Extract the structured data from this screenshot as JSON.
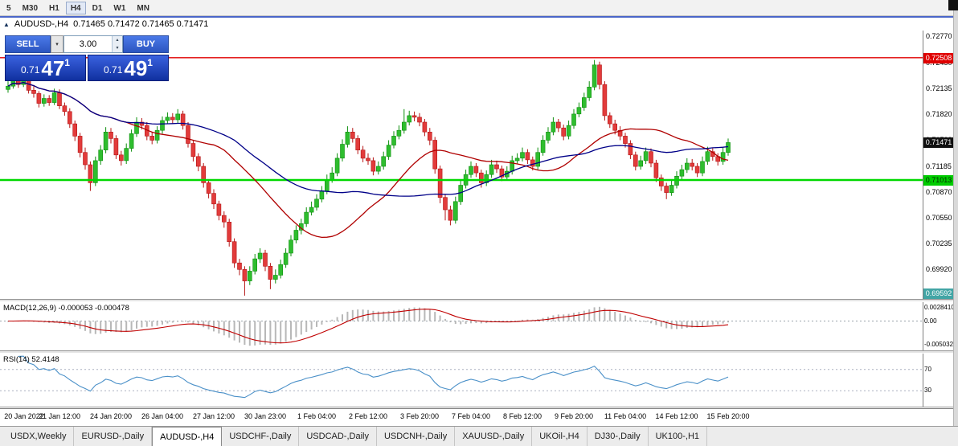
{
  "window": {
    "toolbar_timeframes": [
      "5",
      "M30",
      "H1",
      "H4",
      "D1",
      "W1",
      "MN"
    ],
    "active_timeframe": "H4"
  },
  "chart_header": {
    "title": "AUDUSD-,H4",
    "ohlc": "0.71465 0.71472 0.71465 0.71471"
  },
  "trade_panel": {
    "sell_label": "SELL",
    "buy_label": "BUY",
    "lot_value": "3.00",
    "sell_price_prefix": "0.71",
    "sell_price_big": "47",
    "sell_price_sup": "1",
    "buy_price_prefix": "0.71",
    "buy_price_big": "49",
    "buy_price_sup": "1"
  },
  "price_axis": {
    "scale_top": 0.7284,
    "scale_bottom": 0.6956,
    "labels": [
      "0.72770",
      "0.72450",
      "0.72135",
      "0.71820",
      "0.71500",
      "0.71185",
      "0.70870",
      "0.70550",
      "0.70235",
      "0.69920"
    ]
  },
  "levels": [
    {
      "name": "resistance",
      "price": 0.72508,
      "label": "0.72508",
      "line_color": "#e00000",
      "line_width": 1.4,
      "badge_bg": "#e00000",
      "badge_fg": "#ffffff"
    },
    {
      "name": "current-price",
      "price": 0.71471,
      "label": "0.71471",
      "line_color": null,
      "badge_bg": "#101010",
      "badge_fg": "#ffffff"
    },
    {
      "name": "support",
      "price": 0.71013,
      "label": "0.71013",
      "line_color": "#00d800",
      "line_width": 2.6,
      "badge_bg": "#00cc00",
      "badge_fg": "#002b00"
    },
    {
      "name": "range-low",
      "price": 0.69592,
      "label": "0.69592",
      "line_color": null,
      "badge_bg": "#42a5a5",
      "badge_fg": "#ffffff"
    }
  ],
  "macd_panel": {
    "label": "MACD(12,26,9) -0.000053 -0.000478",
    "axis_top_label": "0.0028410",
    "axis_zero_label": "0.00",
    "axis_bottom_label": "-0.0050320",
    "fast": 12,
    "slow": 26,
    "signal": 9
  },
  "rsi_panel": {
    "label": "RSI(14) 52.4148",
    "period": 14,
    "upper_level": "70",
    "lower_level": "30"
  },
  "bottom_tabs": {
    "active_index": 2,
    "items": [
      "USDX,Weekly",
      "EURUSD-,Daily",
      "AUDUSD-,H4",
      "USDCHF-,Daily",
      "USDCAD-,Daily",
      "USDCNH-,Daily",
      "XAUUSD-,Daily",
      "UKOil-,H4",
      "DJ30-,Daily",
      "UK100-,H1"
    ]
  },
  "colors": {
    "bull_fill": "#2ebd2e",
    "bull_stroke": "#0e8f0e",
    "bear_fill": "#e23b3b",
    "bear_stroke": "#b51414",
    "macd_hist": "#b8b8b8",
    "macd_signal": "#c00000",
    "rsi_line": "#4a90c8",
    "resistance": "#e00000",
    "support": "#00d800",
    "buy_sell_button": "#2f5fd0",
    "price_box": "#1c3cb8"
  },
  "chart_data": {
    "type": "candlestick",
    "symbol": "AUDUSD-",
    "timeframe": "H4",
    "ylim": [
      0.6956,
      0.7284
    ],
    "label_every_n_candles": 10,
    "x_labels": [
      "20 Jan 2022",
      "21 Jan 12:00",
      "24 Jan 20:00",
      "26 Jan 04:00",
      "27 Jan 12:00",
      "30 Jan 23:00",
      "1 Feb 04:00",
      "2 Feb 12:00",
      "3 Feb 20:00",
      "7 Feb 04:00",
      "8 Feb 12:00",
      "9 Feb 20:00",
      "11 Feb 04:00",
      "14 Feb 12:00",
      "15 Feb 20:00"
    ],
    "moving_averages": [
      {
        "period": 24,
        "color": "#b00000"
      },
      {
        "period": 45,
        "color": "#000088"
      }
    ],
    "candles": [
      [
        0.7212,
        0.7222,
        0.7208,
        0.7216
      ],
      [
        0.7216,
        0.723,
        0.7213,
        0.7223
      ],
      [
        0.7223,
        0.7228,
        0.7214,
        0.7218
      ],
      [
        0.7218,
        0.7231,
        0.7215,
        0.7225
      ],
      [
        0.7225,
        0.7229,
        0.7207,
        0.7211
      ],
      [
        0.7211,
        0.7216,
        0.7202,
        0.7207
      ],
      [
        0.7207,
        0.721,
        0.719,
        0.7195
      ],
      [
        0.7195,
        0.7206,
        0.7191,
        0.7201
      ],
      [
        0.7201,
        0.7205,
        0.7192,
        0.7196
      ],
      [
        0.7196,
        0.7213,
        0.7193,
        0.7208
      ],
      [
        0.7208,
        0.7212,
        0.7188,
        0.7192
      ],
      [
        0.7192,
        0.7196,
        0.718,
        0.7185
      ],
      [
        0.7185,
        0.7189,
        0.7165,
        0.717
      ],
      [
        0.717,
        0.7174,
        0.7149,
        0.7155
      ],
      [
        0.7155,
        0.7159,
        0.7129,
        0.7135
      ],
      [
        0.7135,
        0.7141,
        0.7114,
        0.712
      ],
      [
        0.712,
        0.7124,
        0.7088,
        0.7098
      ],
      [
        0.7098,
        0.713,
        0.7094,
        0.7125
      ],
      [
        0.7125,
        0.7144,
        0.712,
        0.7138
      ],
      [
        0.7138,
        0.7166,
        0.7134,
        0.716
      ],
      [
        0.716,
        0.7165,
        0.7146,
        0.7152
      ],
      [
        0.7152,
        0.7156,
        0.7127,
        0.7132
      ],
      [
        0.7132,
        0.7137,
        0.7119,
        0.7125
      ],
      [
        0.7125,
        0.7146,
        0.7121,
        0.714
      ],
      [
        0.714,
        0.7163,
        0.7136,
        0.7158
      ],
      [
        0.7158,
        0.7178,
        0.7154,
        0.7172
      ],
      [
        0.7172,
        0.7177,
        0.7163,
        0.7168
      ],
      [
        0.7168,
        0.7172,
        0.715,
        0.7155
      ],
      [
        0.7155,
        0.716,
        0.7145,
        0.715
      ],
      [
        0.715,
        0.7167,
        0.7146,
        0.7162
      ],
      [
        0.7162,
        0.7179,
        0.7158,
        0.7174
      ],
      [
        0.7174,
        0.7184,
        0.717,
        0.7178
      ],
      [
        0.7178,
        0.7183,
        0.717,
        0.7175
      ],
      [
        0.7175,
        0.7188,
        0.7171,
        0.7182
      ],
      [
        0.7182,
        0.7186,
        0.7163,
        0.7168
      ],
      [
        0.7168,
        0.7172,
        0.7141,
        0.7146
      ],
      [
        0.7146,
        0.715,
        0.7124,
        0.713
      ],
      [
        0.713,
        0.7134,
        0.7112,
        0.7118
      ],
      [
        0.7118,
        0.7122,
        0.7092,
        0.7098
      ],
      [
        0.7098,
        0.7102,
        0.7079,
        0.7085
      ],
      [
        0.7085,
        0.709,
        0.7066,
        0.7072
      ],
      [
        0.7072,
        0.7076,
        0.7052,
        0.7058
      ],
      [
        0.7058,
        0.7063,
        0.7043,
        0.705
      ],
      [
        0.705,
        0.7054,
        0.702,
        0.7026
      ],
      [
        0.7026,
        0.703,
        0.6994,
        0.7
      ],
      [
        0.7,
        0.7005,
        0.6985,
        0.6992
      ],
      [
        0.6992,
        0.6996,
        0.696,
        0.6978
      ],
      [
        0.6978,
        0.6996,
        0.6973,
        0.699
      ],
      [
        0.699,
        0.7011,
        0.6986,
        0.7005
      ],
      [
        0.7005,
        0.7018,
        0.7,
        0.7012
      ],
      [
        0.7012,
        0.7016,
        0.699,
        0.6996
      ],
      [
        0.6996,
        0.7,
        0.6968,
        0.698
      ],
      [
        0.698,
        0.6992,
        0.6975,
        0.6985
      ],
      [
        0.6985,
        0.7004,
        0.6981,
        0.6998
      ],
      [
        0.6998,
        0.7018,
        0.6994,
        0.7012
      ],
      [
        0.7012,
        0.7034,
        0.7008,
        0.7028
      ],
      [
        0.7028,
        0.7046,
        0.7024,
        0.704
      ],
      [
        0.704,
        0.7054,
        0.7035,
        0.7048
      ],
      [
        0.7048,
        0.7068,
        0.7044,
        0.7062
      ],
      [
        0.7062,
        0.7075,
        0.7058,
        0.7068
      ],
      [
        0.7068,
        0.7084,
        0.7064,
        0.7078
      ],
      [
        0.7078,
        0.7094,
        0.7074,
        0.7088
      ],
      [
        0.7088,
        0.7108,
        0.7084,
        0.7102
      ],
      [
        0.7102,
        0.7117,
        0.7098,
        0.711
      ],
      [
        0.711,
        0.7134,
        0.7106,
        0.7128
      ],
      [
        0.7128,
        0.7151,
        0.7124,
        0.7145
      ],
      [
        0.7145,
        0.7167,
        0.7141,
        0.716
      ],
      [
        0.716,
        0.7165,
        0.7147,
        0.7152
      ],
      [
        0.7152,
        0.7156,
        0.7133,
        0.7138
      ],
      [
        0.7138,
        0.7143,
        0.7123,
        0.7128
      ],
      [
        0.7128,
        0.7134,
        0.712,
        0.7125
      ],
      [
        0.7125,
        0.7129,
        0.7107,
        0.7112
      ],
      [
        0.7112,
        0.7124,
        0.7108,
        0.7118
      ],
      [
        0.7118,
        0.7136,
        0.7114,
        0.713
      ],
      [
        0.713,
        0.715,
        0.7126,
        0.7144
      ],
      [
        0.7144,
        0.7161,
        0.714,
        0.7155
      ],
      [
        0.7155,
        0.7168,
        0.7151,
        0.7162
      ],
      [
        0.7162,
        0.7188,
        0.7158,
        0.7172
      ],
      [
        0.7172,
        0.7186,
        0.7168,
        0.718
      ],
      [
        0.718,
        0.7185,
        0.7173,
        0.7178
      ],
      [
        0.7178,
        0.7183,
        0.7167,
        0.7172
      ],
      [
        0.7172,
        0.7176,
        0.7155,
        0.716
      ],
      [
        0.716,
        0.7165,
        0.7144,
        0.715
      ],
      [
        0.715,
        0.7154,
        0.7109,
        0.7115
      ],
      [
        0.7115,
        0.7119,
        0.7073,
        0.708
      ],
      [
        0.708,
        0.7084,
        0.7052,
        0.7065
      ],
      [
        0.7065,
        0.707,
        0.7046,
        0.7052
      ],
      [
        0.7052,
        0.7081,
        0.7048,
        0.7075
      ],
      [
        0.7075,
        0.7101,
        0.7071,
        0.7095
      ],
      [
        0.7095,
        0.7114,
        0.7091,
        0.7108
      ],
      [
        0.7108,
        0.7124,
        0.7104,
        0.7118
      ],
      [
        0.7118,
        0.7122,
        0.7105,
        0.711
      ],
      [
        0.711,
        0.7114,
        0.7092,
        0.7098
      ],
      [
        0.7098,
        0.7113,
        0.7094,
        0.7108
      ],
      [
        0.7108,
        0.7126,
        0.7104,
        0.712
      ],
      [
        0.712,
        0.7125,
        0.711,
        0.7115
      ],
      [
        0.7115,
        0.7119,
        0.71,
        0.7105
      ],
      [
        0.7105,
        0.7118,
        0.7101,
        0.7112
      ],
      [
        0.7112,
        0.7131,
        0.7108,
        0.7125
      ],
      [
        0.7125,
        0.7134,
        0.7121,
        0.7128
      ],
      [
        0.7128,
        0.7141,
        0.7124,
        0.7135
      ],
      [
        0.7135,
        0.7139,
        0.7121,
        0.7126
      ],
      [
        0.7126,
        0.713,
        0.7113,
        0.7118
      ],
      [
        0.7118,
        0.7141,
        0.7114,
        0.7135
      ],
      [
        0.7135,
        0.7156,
        0.7131,
        0.715
      ],
      [
        0.715,
        0.7166,
        0.7146,
        0.716
      ],
      [
        0.716,
        0.7178,
        0.7156,
        0.7172
      ],
      [
        0.7172,
        0.7176,
        0.716,
        0.7165
      ],
      [
        0.7165,
        0.7169,
        0.715,
        0.7155
      ],
      [
        0.7155,
        0.7174,
        0.7151,
        0.7168
      ],
      [
        0.7168,
        0.7188,
        0.7164,
        0.7182
      ],
      [
        0.7182,
        0.7196,
        0.7178,
        0.719
      ],
      [
        0.719,
        0.7208,
        0.7186,
        0.7202
      ],
      [
        0.7202,
        0.7222,
        0.7198,
        0.7215
      ],
      [
        0.7215,
        0.7248,
        0.7211,
        0.7242
      ],
      [
        0.7242,
        0.7246,
        0.7212,
        0.7218
      ],
      [
        0.7218,
        0.7222,
        0.7174,
        0.718
      ],
      [
        0.718,
        0.7184,
        0.7165,
        0.717
      ],
      [
        0.717,
        0.7175,
        0.7157,
        0.7162
      ],
      [
        0.7162,
        0.7167,
        0.715,
        0.7155
      ],
      [
        0.7155,
        0.7159,
        0.7141,
        0.7146
      ],
      [
        0.7146,
        0.715,
        0.7127,
        0.7132
      ],
      [
        0.7132,
        0.7136,
        0.7113,
        0.7118
      ],
      [
        0.7118,
        0.7131,
        0.7114,
        0.7125
      ],
      [
        0.7125,
        0.7141,
        0.7121,
        0.7136
      ],
      [
        0.7136,
        0.714,
        0.7117,
        0.7122
      ],
      [
        0.7122,
        0.7126,
        0.7099,
        0.7104
      ],
      [
        0.7104,
        0.7108,
        0.7088,
        0.7094
      ],
      [
        0.7094,
        0.7098,
        0.7078,
        0.7086
      ],
      [
        0.7086,
        0.7101,
        0.7082,
        0.7095
      ],
      [
        0.7095,
        0.7112,
        0.7091,
        0.7106
      ],
      [
        0.7106,
        0.712,
        0.7102,
        0.7114
      ],
      [
        0.7114,
        0.7128,
        0.711,
        0.7122
      ],
      [
        0.7122,
        0.7127,
        0.7113,
        0.7118
      ],
      [
        0.7118,
        0.7122,
        0.7105,
        0.711
      ],
      [
        0.711,
        0.713,
        0.7106,
        0.7124
      ],
      [
        0.7124,
        0.7142,
        0.712,
        0.7136
      ],
      [
        0.7136,
        0.714,
        0.7125,
        0.713
      ],
      [
        0.713,
        0.7134,
        0.7119,
        0.7124
      ],
      [
        0.7124,
        0.7141,
        0.712,
        0.7135
      ],
      [
        0.7135,
        0.7152,
        0.7131,
        0.71471
      ]
    ]
  }
}
